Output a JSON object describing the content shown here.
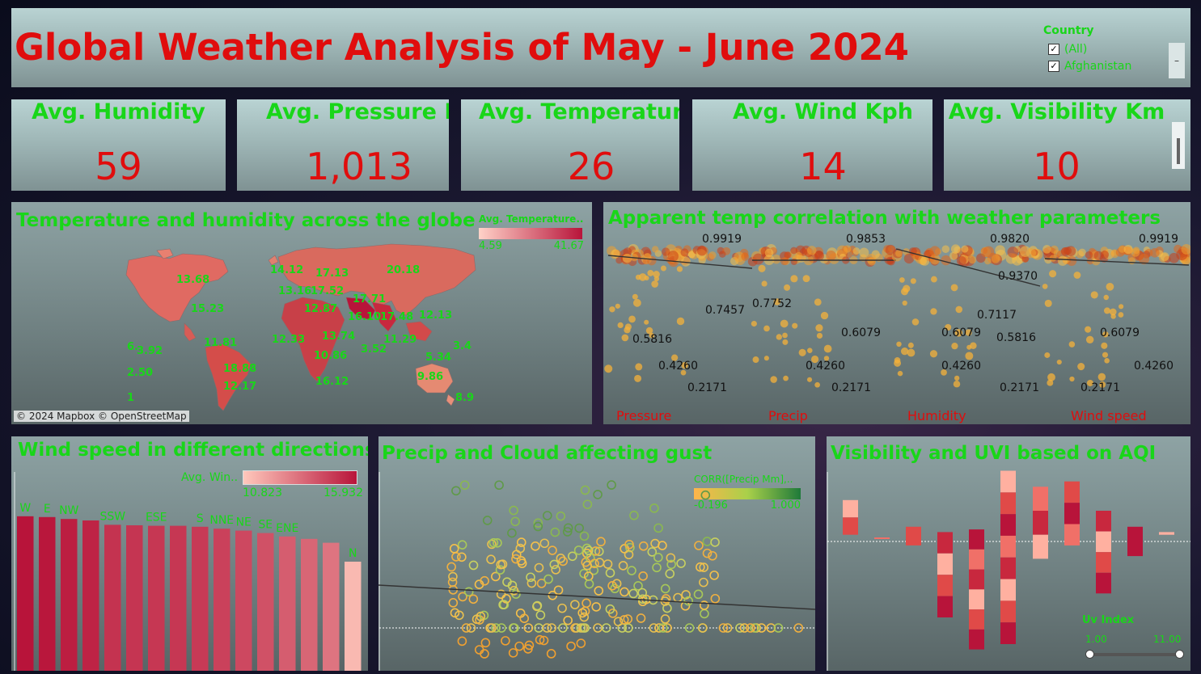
{
  "header": {
    "title": "Global Weather Analysis of May - June 2024",
    "filter": {
      "label": "Country",
      "options": [
        "(All)",
        "Afghanistan"
      ],
      "collapse_label": "–"
    }
  },
  "kpis": [
    {
      "label": "Avg. Humidity",
      "value": "59"
    },
    {
      "label": "Avg. Pressure Mb",
      "value": "1,013"
    },
    {
      "label": "Avg. Temperature C..",
      "value": "26"
    },
    {
      "label": "Avg. Wind Kph",
      "value": "14"
    },
    {
      "label": "Avg. Visibility Km",
      "value": "10"
    }
  ],
  "map_panel": {
    "title": "Temperature and humidity across the globe",
    "legend_title": "Avg. Temperature..",
    "legend_min": "4.59",
    "legend_max": "41.67",
    "attribution": "© 2024 Mapbox © OpenStreetMap",
    "labels": [
      "13.68",
      "15.23",
      "14.12",
      "13.16",
      "17.52",
      "17.13",
      "20.18",
      "12.87",
      "17.71",
      "16.10",
      "17.48",
      "12.13",
      "11.81",
      "12.33",
      "13.74",
      "3.52",
      "11.29",
      "10.86",
      "5.34",
      "3.4",
      "18.88",
      "9.86",
      "12.17",
      "16.12",
      "3.92",
      "2.50",
      "1",
      "6.",
      "8.9"
    ]
  },
  "apparent_panel": {
    "title": "Apparent temp correlation with weather parameters",
    "facets": [
      {
        "name": "Pressure",
        "top": "0.9919",
        "labels": [
          "0.7457",
          "0.5816",
          "0.4260",
          "0.2171"
        ]
      },
      {
        "name": "Precip",
        "top": "0.9853",
        "labels": [
          "0.7752",
          "0.6079",
          "0.4260",
          "0.2171"
        ]
      },
      {
        "name": "Humidity",
        "top": "0.9820",
        "labels": [
          "0.9370",
          "0.7117",
          "0.6079",
          "0.5816",
          "0.4260",
          "0.2171"
        ]
      },
      {
        "name": "Wind speed",
        "top": "0.9919",
        "labels": [
          "0.6079",
          "0.4260",
          "0.2171"
        ]
      }
    ]
  },
  "wind_panel": {
    "title": "Wind speed in different directions",
    "legend_title": "Avg. Win..",
    "legend_min": "10.823",
    "legend_max": "15.932"
  },
  "gust_panel": {
    "title": "Precip and Cloud affecting gust",
    "legend_title": "CORR([Precip Mm],..",
    "legend_min": "-0.196",
    "legend_max": "1.000"
  },
  "aqi_panel": {
    "title": "Visibility and UVI based on AQI",
    "slider_label": "Uv Index",
    "slider_min": "1.00",
    "slider_max": "11.00"
  },
  "chart_data": [
    {
      "type": "bar",
      "name": "wind",
      "categories": [
        "W",
        "E",
        "NW",
        "SW",
        "SSW",
        "WSW",
        "ESE",
        "SSE",
        "S",
        "NNE",
        "NE",
        "SE",
        "ENE",
        "WNW",
        "NNW",
        "N"
      ],
      "visible_labels": [
        "W",
        "E",
        "NW",
        "",
        "SSW",
        "",
        "ESE",
        "",
        "S",
        "NNE",
        "NE",
        "SE",
        "ENE",
        "",
        "",
        "N"
      ],
      "values": [
        15.93,
        15.85,
        15.65,
        15.5,
        15.05,
        15.0,
        14.95,
        14.95,
        14.85,
        14.65,
        14.45,
        14.2,
        13.85,
        13.6,
        13.2,
        11.25
      ],
      "ylim": [
        0,
        16.5
      ],
      "color_range": [
        10.823,
        15.932
      ]
    },
    {
      "type": "scatter",
      "name": "gust",
      "trend": [
        [
          0,
          4.6
        ],
        [
          1,
          3.5
        ]
      ]
    },
    {
      "type": "bar",
      "name": "aqi",
      "bars": [
        {
          "top": 64,
          "bottom": 51
        },
        {
          "top": 50,
          "bottom": 50
        },
        {
          "top": 54,
          "bottom": 47
        },
        {
          "top": 52,
          "bottom": 20
        },
        {
          "top": 53,
          "bottom": 8
        },
        {
          "top": 75,
          "bottom": 10
        },
        {
          "top": 69,
          "bottom": 42
        },
        {
          "top": 71,
          "bottom": 47
        },
        {
          "top": 60,
          "bottom": 29
        },
        {
          "top": 54,
          "bottom": 43
        },
        {
          "top": 52,
          "bottom": 51
        }
      ],
      "reference": 50
    }
  ]
}
